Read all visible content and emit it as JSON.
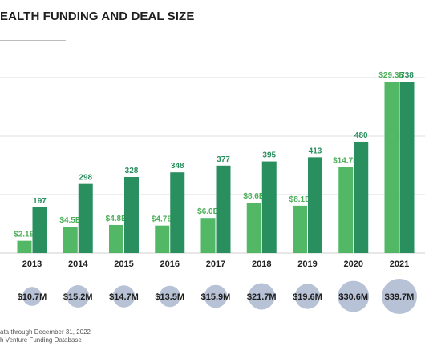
{
  "header": {
    "title": "EALTH FUNDING AND DEAL SIZE"
  },
  "footnotes": {
    "line1": "ata through December 31, 2022",
    "line2": "h Venture Funding Database"
  },
  "colors": {
    "funding_bar": "#52b865",
    "deals_bar": "#2a8f5f",
    "funding_label": "#4caf59",
    "deals_label": "#2a8f5f",
    "bubble": "#b7c2d6",
    "grid": "#dddddd",
    "axis_text": "#222222"
  },
  "chart_data": {
    "type": "bar",
    "categories": [
      "2013",
      "2014",
      "2015",
      "2016",
      "2017",
      "2018",
      "2019",
      "2020",
      "2021"
    ],
    "series": [
      {
        "values": [
          2.1,
          4.5,
          4.8,
          4.7,
          6.0,
          8.6,
          8.1,
          14.7,
          29.3
        ],
        "labels": [
          "$2.1B",
          "$4.5B",
          "$4.8B",
          "$4.7B",
          "$6.0B",
          "$8.6B",
          "$8.1B",
          "$14.7B",
          "$29.3B"
        ]
      },
      {
        "values": [
          197,
          298,
          328,
          348,
          377,
          395,
          413,
          480,
          738
        ],
        "labels": [
          "197",
          "298",
          "328",
          "348",
          "377",
          "395",
          "413",
          "480",
          "738"
        ]
      }
    ],
    "bubbles": {
      "values": [
        10.7,
        15.2,
        14.7,
        13.5,
        15.9,
        21.7,
        19.6,
        30.6,
        39.7
      ],
      "labels": [
        "$10.7M",
        "$15.2M",
        "$14.7M",
        "$13.5M",
        "$15.9M",
        "$21.7M",
        "$19.6M",
        "$30.6M",
        "$39.7M"
      ]
    },
    "ylim_funding": [
      0,
      30
    ],
    "ylim_deals": [
      0,
      756
    ],
    "grid": true
  }
}
